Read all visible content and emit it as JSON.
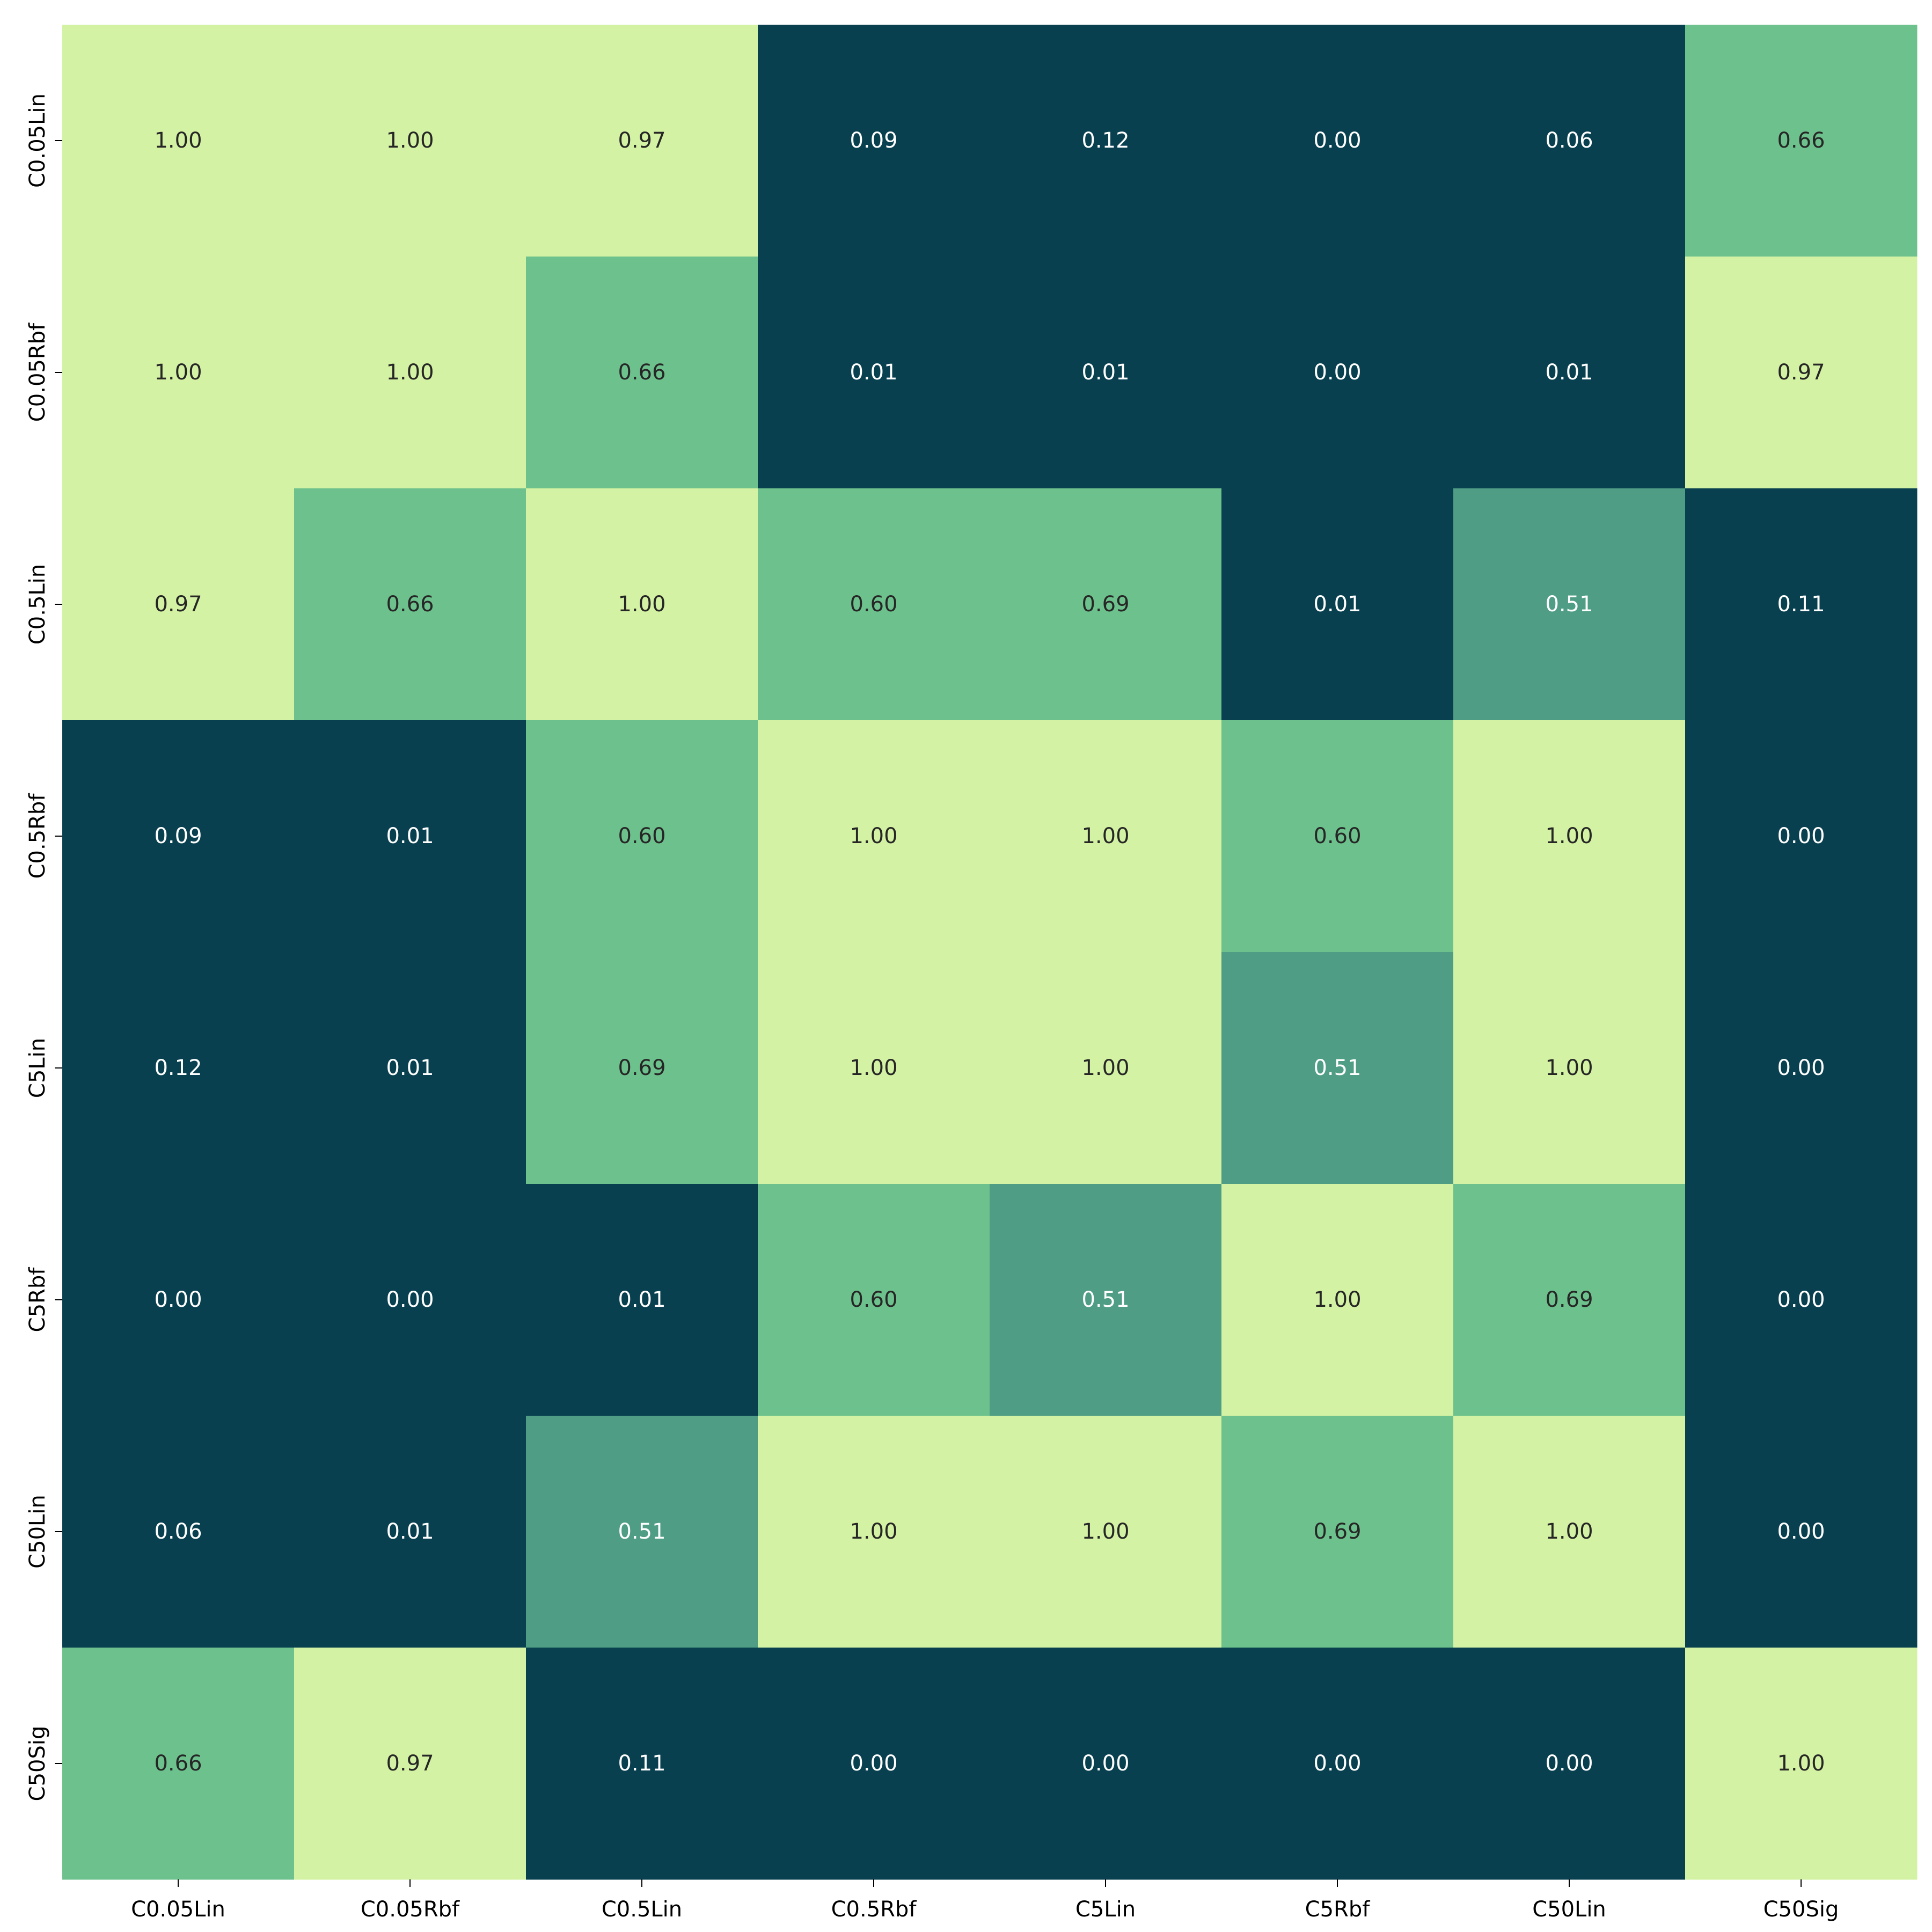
{
  "chart_data": {
    "type": "heatmap",
    "x_categories": [
      "C0.05Lin",
      "C0.05Rbf",
      "C0.5Lin",
      "C0.5Rbf",
      "C5Lin",
      "C5Rbf",
      "C50Lin",
      "C50Sig"
    ],
    "y_categories": [
      "C0.05Lin",
      "C0.05Rbf",
      "C0.5Lin",
      "C0.5Rbf",
      "C5Lin",
      "C5Rbf",
      "C50Lin",
      "C50Sig"
    ],
    "values": [
      [
        1.0,
        1.0,
        0.97,
        0.09,
        0.12,
        0.0,
        0.06,
        0.66
      ],
      [
        1.0,
        1.0,
        0.66,
        0.01,
        0.01,
        0.0,
        0.01,
        0.97
      ],
      [
        0.97,
        0.66,
        1.0,
        0.6,
        0.69,
        0.01,
        0.51,
        0.11
      ],
      [
        0.09,
        0.01,
        0.6,
        1.0,
        1.0,
        0.6,
        1.0,
        0.0
      ],
      [
        0.12,
        0.01,
        0.69,
        1.0,
        1.0,
        0.51,
        1.0,
        0.0
      ],
      [
        0.0,
        0.0,
        0.01,
        0.6,
        0.51,
        1.0,
        0.69,
        0.0
      ],
      [
        0.06,
        0.01,
        0.51,
        1.0,
        1.0,
        0.69,
        1.0,
        0.0
      ],
      [
        0.66,
        0.97,
        0.11,
        0.0,
        0.0,
        0.0,
        0.0,
        1.0
      ]
    ],
    "color_bins": [
      {
        "min": 0.0,
        "max": 0.5,
        "color": "#084050",
        "text_color": "#ffffff"
      },
      {
        "min": 0.5,
        "max": 0.6,
        "color": "#4f9d84",
        "text_color": "#ffffff"
      },
      {
        "min": 0.6,
        "max": 0.9,
        "color": "#6dc18c",
        "text_color": "#262626"
      },
      {
        "min": 0.9,
        "max": 1.01,
        "color": "#d3f2a3",
        "text_color": "#262626"
      }
    ],
    "value_format_decimals": 2,
    "title": "",
    "xlabel": "",
    "ylabel": "",
    "legend": "none"
  }
}
